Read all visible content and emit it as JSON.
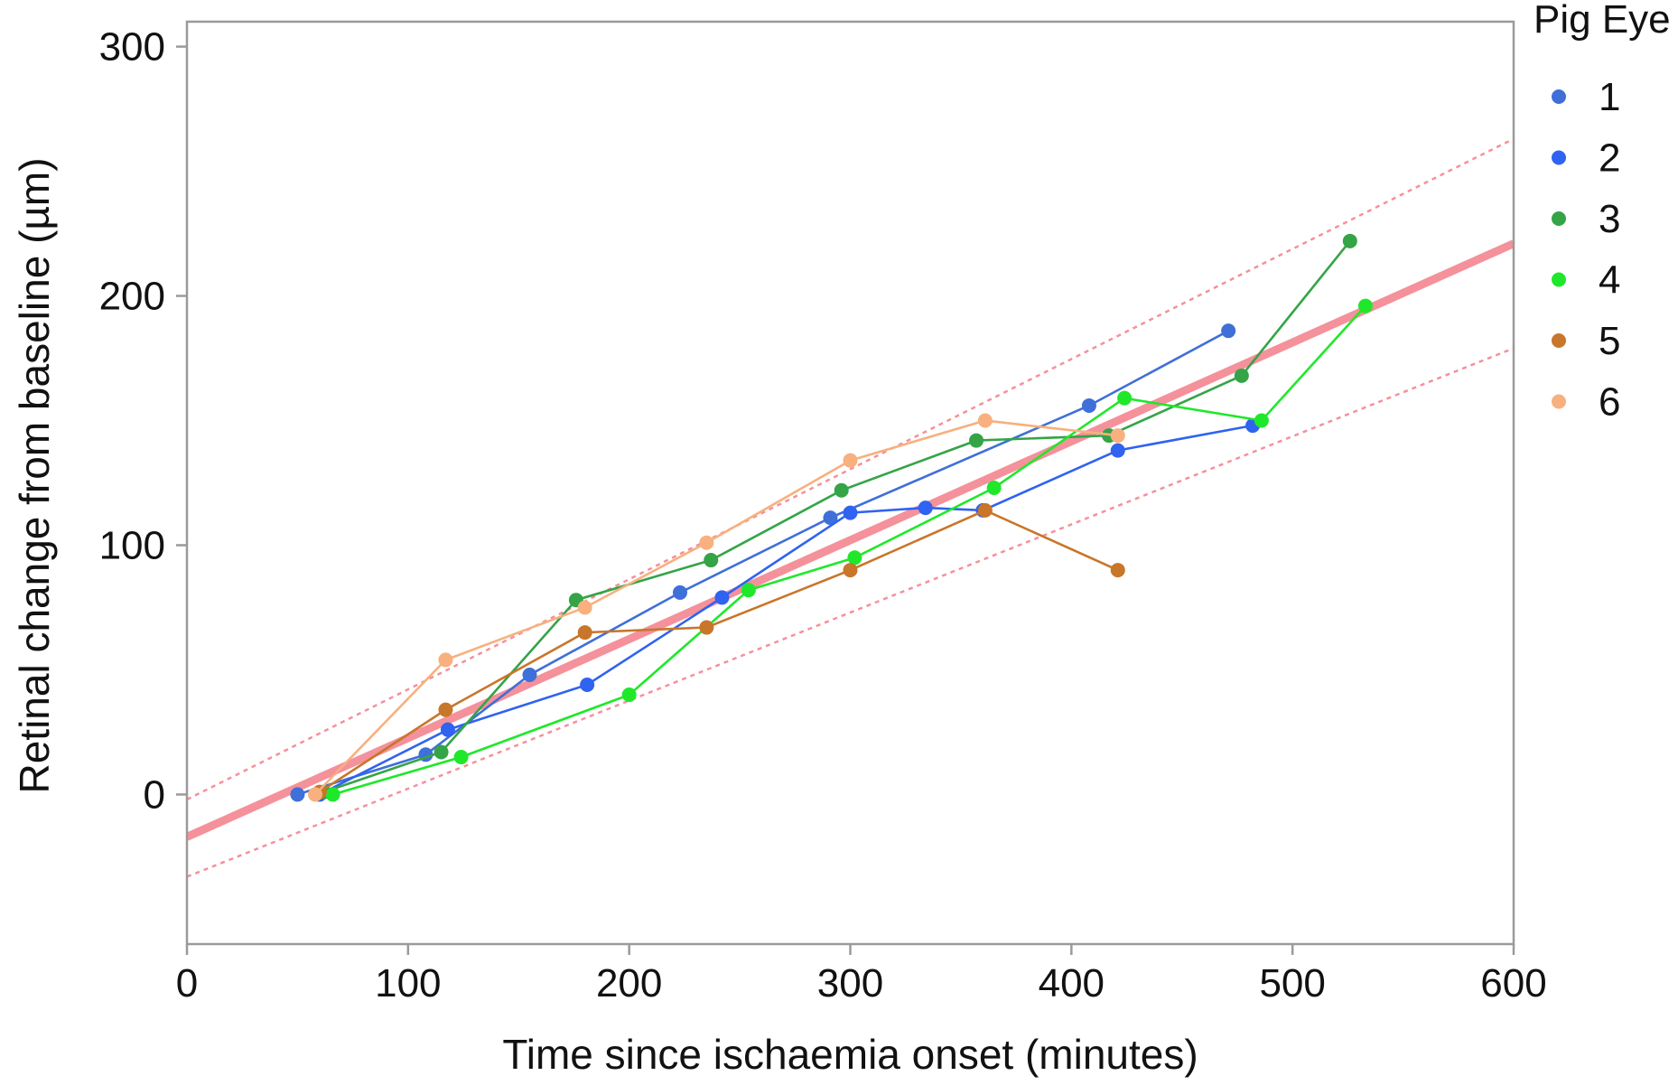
{
  "chart_data": {
    "type": "line",
    "xlabel": "Time since ischaemia onset (minutes)",
    "ylabel": "Retinal change from baseline (µm)",
    "xlim": [
      0,
      600
    ],
    "ylim": [
      -60,
      310
    ],
    "x_ticks": [
      0,
      100,
      200,
      300,
      400,
      500,
      600
    ],
    "y_ticks": [
      0,
      100,
      200,
      300
    ],
    "grid": false,
    "legend": {
      "title": "Pig Eye",
      "placement": "right"
    },
    "fit": {
      "line": [
        [
          0,
          -17
        ],
        [
          600,
          221
        ]
      ],
      "upper_band": [
        [
          0,
          -2
        ],
        [
          600,
          263
        ]
      ],
      "lower_band": [
        [
          0,
          -33
        ],
        [
          600,
          179
        ]
      ],
      "color": "#F4919B"
    },
    "series": [
      {
        "name": "1",
        "color": "#3F6FD8",
        "points": [
          [
            50,
            0
          ],
          [
            108,
            16
          ],
          [
            155,
            48
          ],
          [
            223,
            81
          ],
          [
            291,
            111
          ],
          [
            408,
            156
          ],
          [
            471,
            186
          ]
        ]
      },
      {
        "name": "2",
        "color": "#2F63F0",
        "points": [
          [
            60,
            0
          ],
          [
            118,
            26
          ],
          [
            181,
            44
          ],
          [
            242,
            79
          ],
          [
            300,
            113
          ],
          [
            334,
            115
          ],
          [
            360,
            114
          ],
          [
            421,
            138
          ],
          [
            482,
            148
          ]
        ]
      },
      {
        "name": "3",
        "color": "#34A447",
        "points": [
          [
            62,
            1
          ],
          [
            115,
            17
          ],
          [
            176,
            78
          ],
          [
            237,
            94
          ],
          [
            296,
            122
          ],
          [
            357,
            142
          ],
          [
            417,
            144
          ],
          [
            477,
            168
          ],
          [
            526,
            222
          ]
        ]
      },
      {
        "name": "4",
        "color": "#1FE82A",
        "points": [
          [
            66,
            0
          ],
          [
            124,
            15
          ],
          [
            200,
            40
          ],
          [
            254,
            82
          ],
          [
            302,
            95
          ],
          [
            365,
            123
          ],
          [
            424,
            159
          ],
          [
            486,
            150
          ],
          [
            533,
            196
          ]
        ]
      },
      {
        "name": "5",
        "color": "#C8762A",
        "points": [
          [
            60,
            1
          ],
          [
            117,
            34
          ],
          [
            180,
            65
          ],
          [
            235,
            67
          ],
          [
            300,
            90
          ],
          [
            361,
            114
          ],
          [
            421,
            90
          ]
        ]
      },
      {
        "name": "6",
        "color": "#F8B07E",
        "points": [
          [
            58,
            0
          ],
          [
            117,
            54
          ],
          [
            180,
            75
          ],
          [
            235,
            101
          ],
          [
            300,
            134
          ],
          [
            361,
            150
          ],
          [
            421,
            144
          ]
        ]
      }
    ]
  }
}
